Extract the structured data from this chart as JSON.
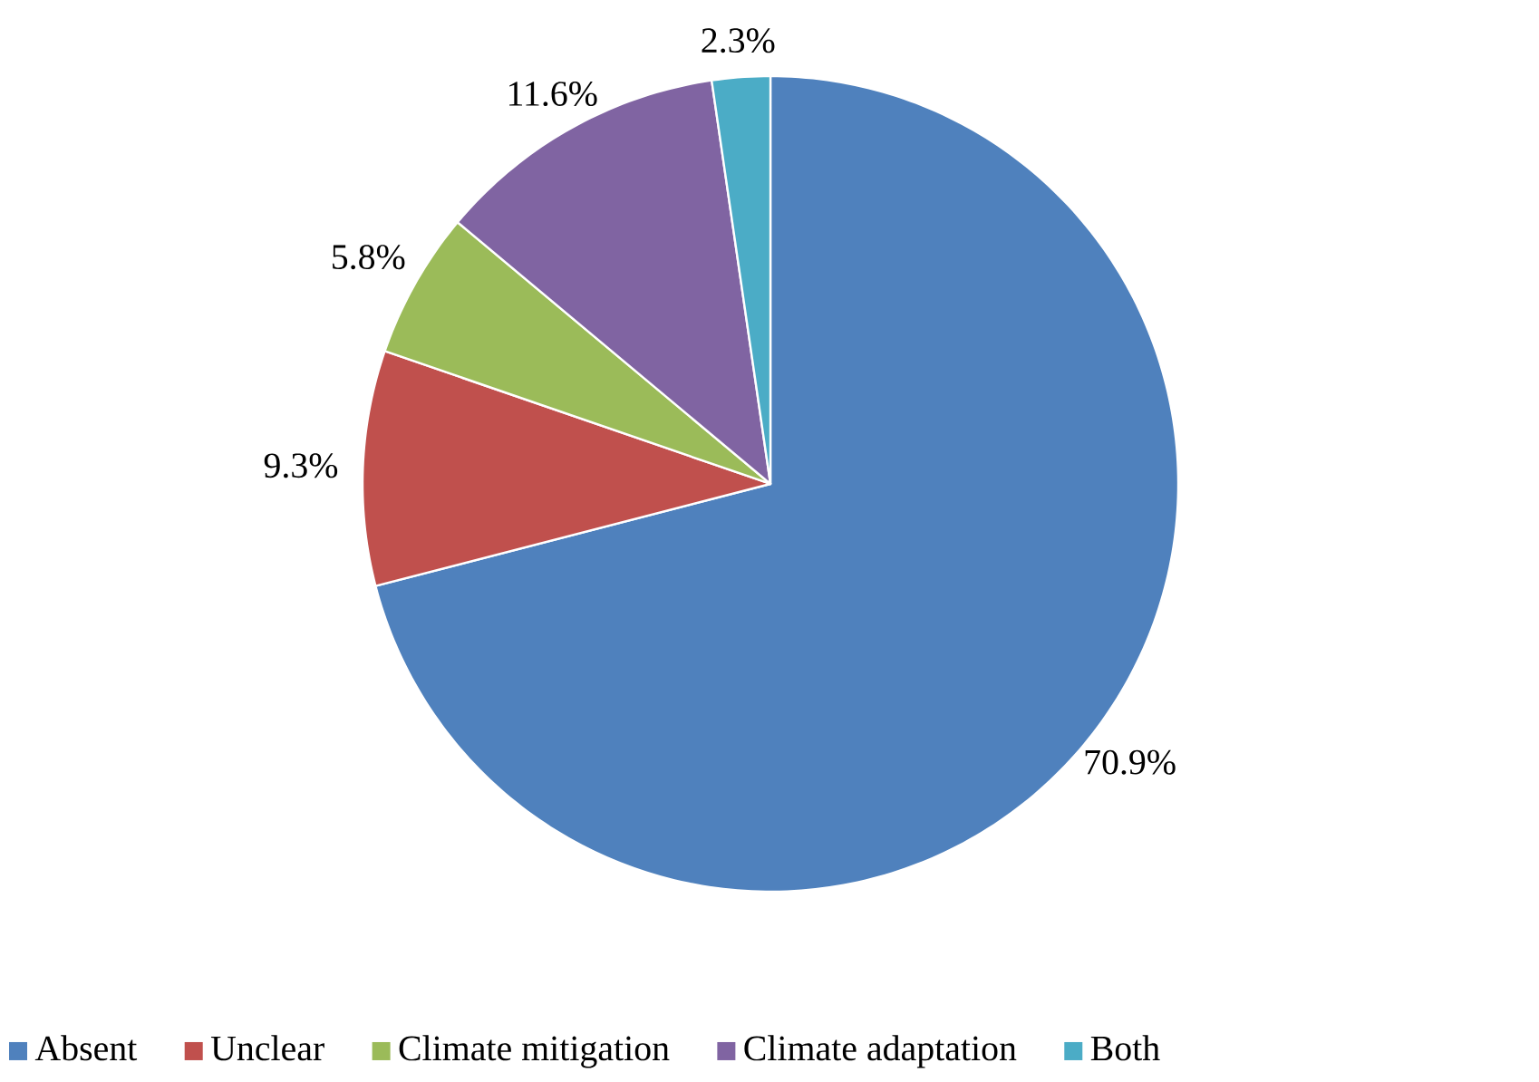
{
  "chart_data": {
    "type": "pie",
    "categories": [
      "Absent",
      "Unclear",
      "Climate mitigation",
      "Climate adaptation",
      "Both"
    ],
    "values": [
      70.9,
      9.3,
      5.8,
      11.6,
      2.3
    ],
    "value_labels": [
      "70.9%",
      "9.3%",
      "5.8%",
      "11.6%",
      "2.3%"
    ],
    "colors": [
      "#4f81bd",
      "#c0504d",
      "#9bbb59",
      "#8064a2",
      "#4bacc6"
    ],
    "legend": "bottom"
  }
}
